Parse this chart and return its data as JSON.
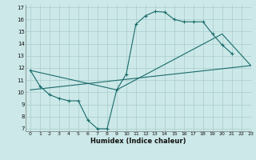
{
  "xlabel": "Humidex (Indice chaleur)",
  "bg_color": "#cce8e8",
  "grid_color": "#aacccc",
  "line_color": "#1a6b6b",
  "xlim": [
    -0.5,
    23
  ],
  "ylim": [
    6.8,
    17.2
  ],
  "yticks": [
    7,
    8,
    9,
    10,
    11,
    12,
    13,
    14,
    15,
    16,
    17
  ],
  "xticks": [
    0,
    1,
    2,
    3,
    4,
    5,
    6,
    7,
    8,
    9,
    10,
    11,
    12,
    13,
    14,
    15,
    16,
    17,
    18,
    19,
    20,
    21,
    22,
    23
  ],
  "line1_x": [
    0,
    1,
    2,
    3,
    4,
    5,
    6,
    7,
    8,
    9,
    10,
    11,
    12,
    13,
    14,
    15,
    16,
    17,
    18,
    19,
    20,
    21
  ],
  "line1_y": [
    11.8,
    10.5,
    9.8,
    9.5,
    9.3,
    9.3,
    7.7,
    7.0,
    7.0,
    10.2,
    11.5,
    15.6,
    16.3,
    16.65,
    16.6,
    16.0,
    15.8,
    15.8,
    15.8,
    14.8,
    13.9,
    13.2
  ],
  "line2_x": [
    0,
    23
  ],
  "line2_y": [
    10.2,
    12.2
  ],
  "line3_x": [
    0,
    9,
    20,
    23
  ],
  "line3_y": [
    11.8,
    10.2,
    14.8,
    12.2
  ]
}
